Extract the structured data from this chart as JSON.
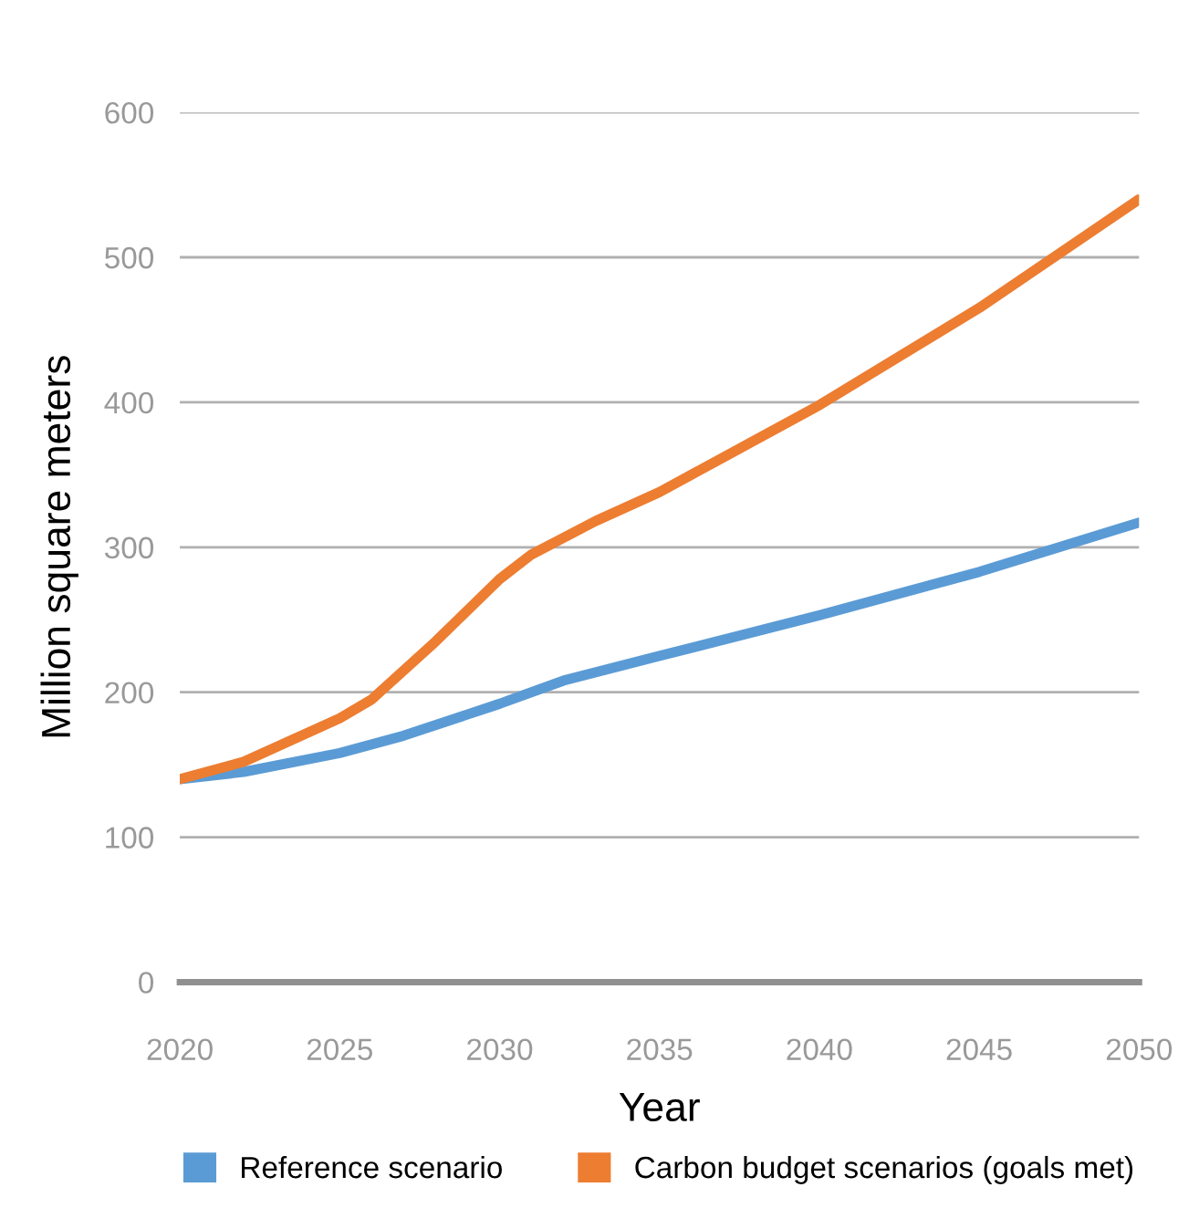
{
  "chart_data": {
    "type": "line",
    "xlabel": "Year",
    "ylabel": "Million square meters",
    "x": [
      2020,
      2022,
      2025,
      2027,
      2030,
      2032,
      2035,
      2040,
      2045,
      2050
    ],
    "series": [
      {
        "name": "Reference scenario",
        "color": "#5b9bd5",
        "values": [
          140,
          145,
          158,
          170,
          192,
          208,
          225,
          253,
          283,
          317
        ]
      },
      {
        "name": "Carbon budget scenarios (goals met)",
        "color": "#ed7d31",
        "x": [
          2020,
          2022,
          2025,
          2026,
          2028,
          2030,
          2031,
          2033,
          2035,
          2040,
          2045,
          2050
        ],
        "values": [
          140,
          152,
          182,
          195,
          235,
          278,
          295,
          318,
          338,
          398,
          465,
          540
        ]
      }
    ],
    "xlim": [
      2020,
      2050
    ],
    "xticks": [
      2020,
      2025,
      2030,
      2035,
      2040,
      2045,
      2050
    ],
    "ylim": [
      0,
      600
    ],
    "yticks": [
      0,
      100,
      200,
      300,
      400,
      500,
      600
    ],
    "grid": "y",
    "legend": "bottom",
    "line_style": "solid",
    "marker": "none"
  }
}
